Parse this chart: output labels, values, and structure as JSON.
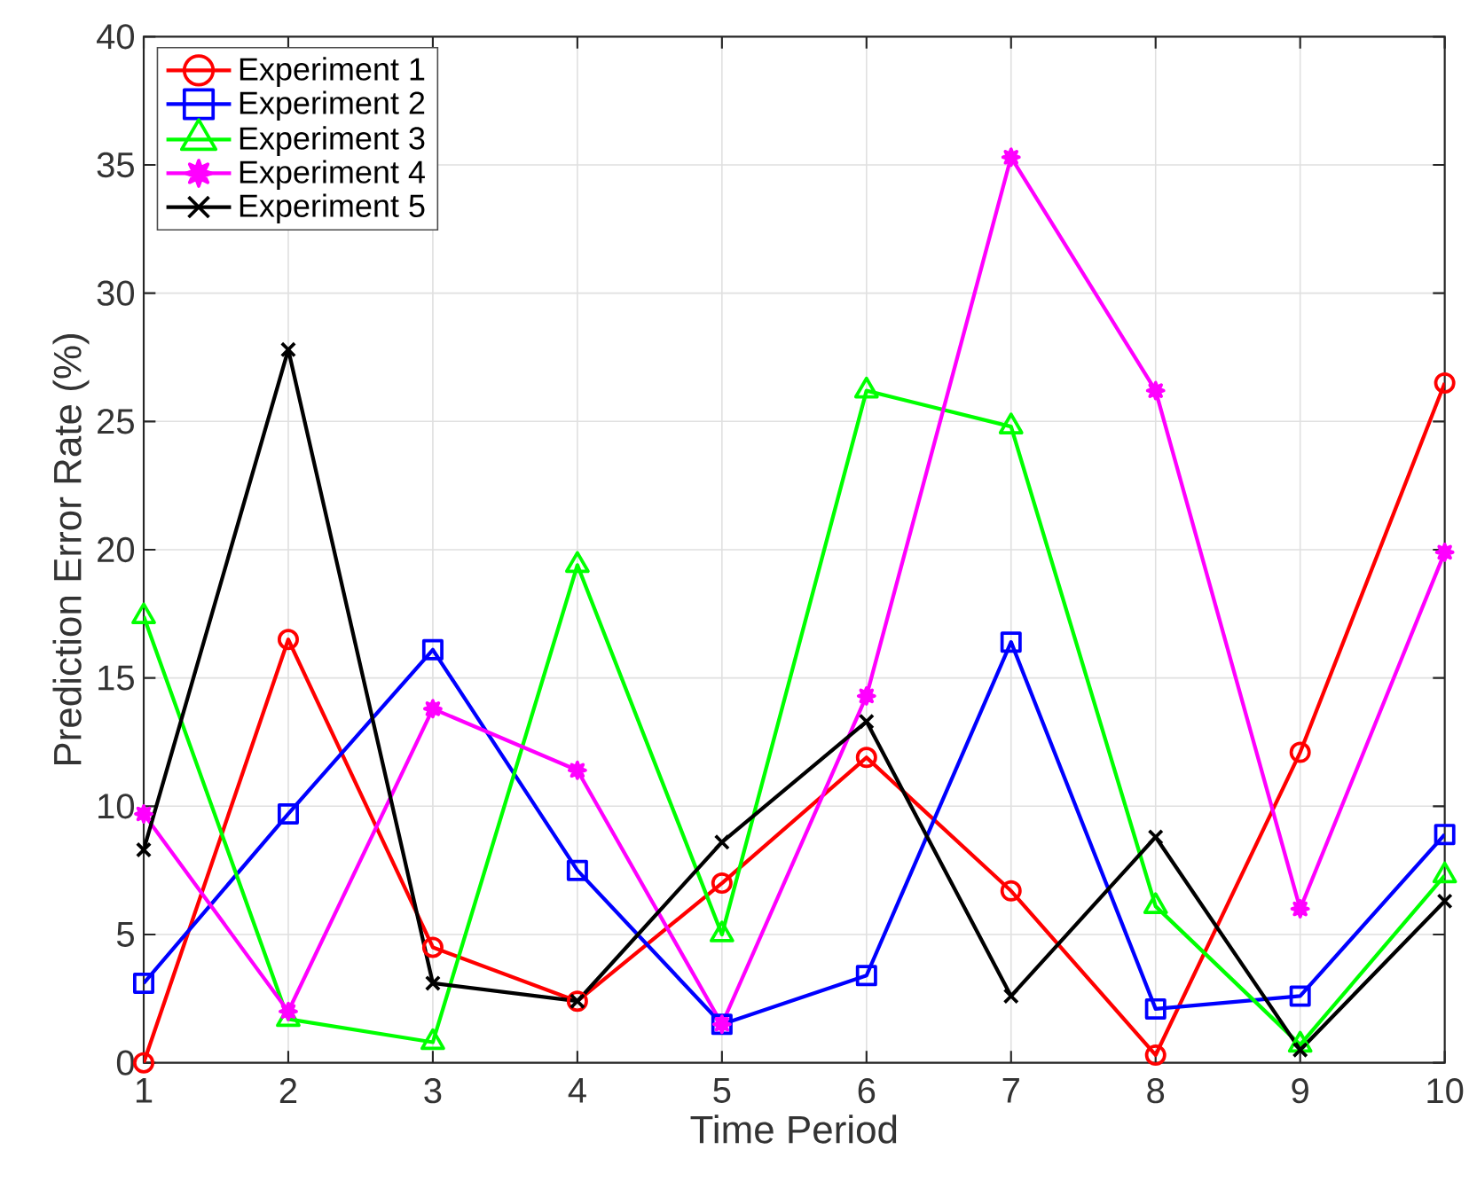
{
  "chart_data": {
    "type": "line",
    "xlabel": "Time Period",
    "ylabel": "Prediction Error Rate (%)",
    "x": [
      1,
      2,
      3,
      4,
      5,
      6,
      7,
      8,
      9,
      10
    ],
    "xlim": [
      1,
      10
    ],
    "xticks": [
      1,
      2,
      3,
      4,
      5,
      6,
      7,
      8,
      9,
      10
    ],
    "ylim": [
      0,
      40
    ],
    "yticks": [
      0,
      5,
      10,
      15,
      20,
      25,
      30,
      35,
      40
    ],
    "grid": true,
    "legend": "top left",
    "series": [
      {
        "name": "Experiment 1",
        "color": "#ff0000",
        "marker": "circle",
        "values": [
          0,
          16.5,
          4.5,
          2.4,
          7.0,
          11.9,
          6.7,
          0.3,
          12.1,
          26.5
        ]
      },
      {
        "name": "Experiment 2",
        "color": "#0000ff",
        "marker": "square",
        "values": [
          3.1,
          9.7,
          16.1,
          7.5,
          1.5,
          3.4,
          16.4,
          2.1,
          2.6,
          8.9
        ]
      },
      {
        "name": "Experiment 3",
        "color": "#00ff00",
        "marker": "triangle",
        "values": [
          17.4,
          1.7,
          0.8,
          19.4,
          5.0,
          26.2,
          24.8,
          6.1,
          0.7,
          7.3
        ]
      },
      {
        "name": "Experiment 4",
        "color": "#ff00ff",
        "marker": "star",
        "values": [
          9.7,
          2.0,
          13.8,
          11.4,
          1.5,
          14.3,
          35.3,
          26.2,
          6.0,
          19.9
        ]
      },
      {
        "name": "Experiment 5",
        "color": "#000000",
        "marker": "cross",
        "values": [
          8.3,
          27.8,
          3.1,
          2.4,
          8.6,
          13.3,
          2.6,
          8.8,
          0.5,
          6.3
        ]
      }
    ]
  }
}
